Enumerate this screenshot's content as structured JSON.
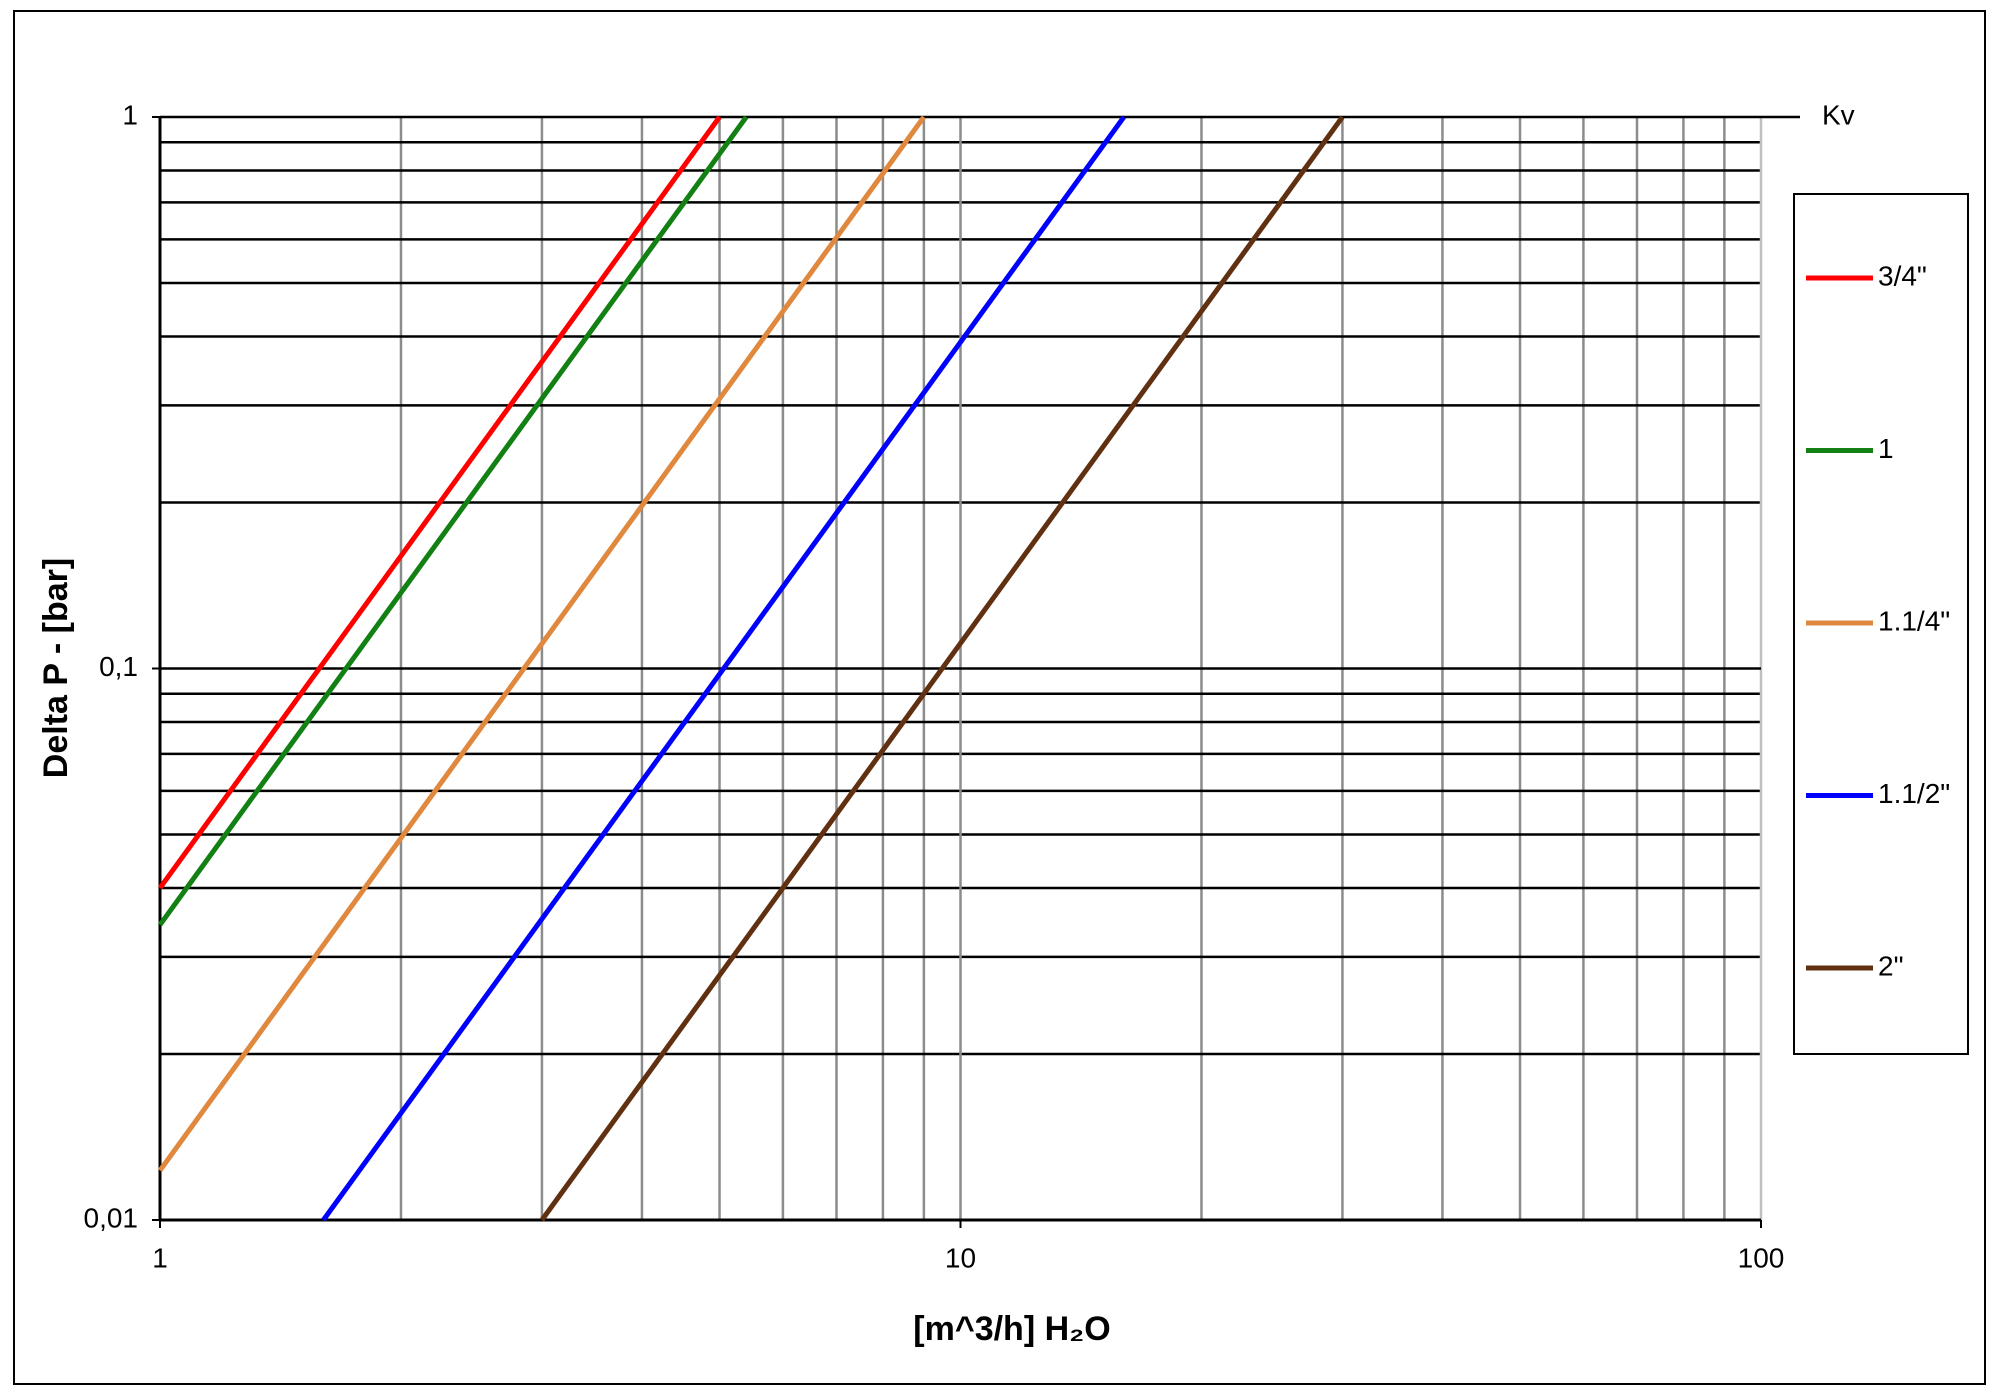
{
  "chart_data": {
    "type": "line",
    "title_right": "Kv",
    "ylabel": "Delta P - [bar]",
    "xlabel": "[m^3/h] H₂O",
    "xscale": "log",
    "yscale": "log",
    "xlim": [
      1,
      100
    ],
    "ylim": [
      0.01,
      1
    ],
    "xticks": [
      1,
      10,
      100
    ],
    "yticks": [
      {
        "value": 0.01,
        "label": "0,01"
      },
      {
        "value": 0.1,
        "label": "0,1"
      },
      1
    ],
    "xminorticks": [
      2,
      3,
      4,
      5,
      6,
      7,
      8,
      9,
      20,
      30,
      40,
      50,
      60,
      70,
      80,
      90
    ],
    "yminorticks": [
      0.02,
      0.03,
      0.04,
      0.05,
      0.06,
      0.07,
      0.08,
      0.09,
      0.2,
      0.3,
      0.4,
      0.5,
      0.6,
      0.7,
      0.8,
      0.9
    ],
    "grid": true,
    "legend": "right",
    "series": [
      {
        "name": "3/4\"",
        "color": "#ff0000",
        "x": [
          1,
          5
        ],
        "values": [
          0.04,
          1
        ]
      },
      {
        "name": "1",
        "color": "#138013",
        "x": [
          1,
          5.4
        ],
        "values": [
          0.0343,
          1
        ]
      },
      {
        "name": "1.1/4\"",
        "color": "#e0883e",
        "x": [
          1,
          9
        ],
        "values": [
          0.0123,
          1
        ]
      },
      {
        "name": "1.1/2\"",
        "color": "#0000ff",
        "x": [
          1.6,
          16
        ],
        "values": [
          0.01,
          1
        ]
      },
      {
        "name": "2\"",
        "color": "#603010",
        "x": [
          3,
          30
        ],
        "values": [
          0.01,
          1
        ]
      }
    ]
  }
}
